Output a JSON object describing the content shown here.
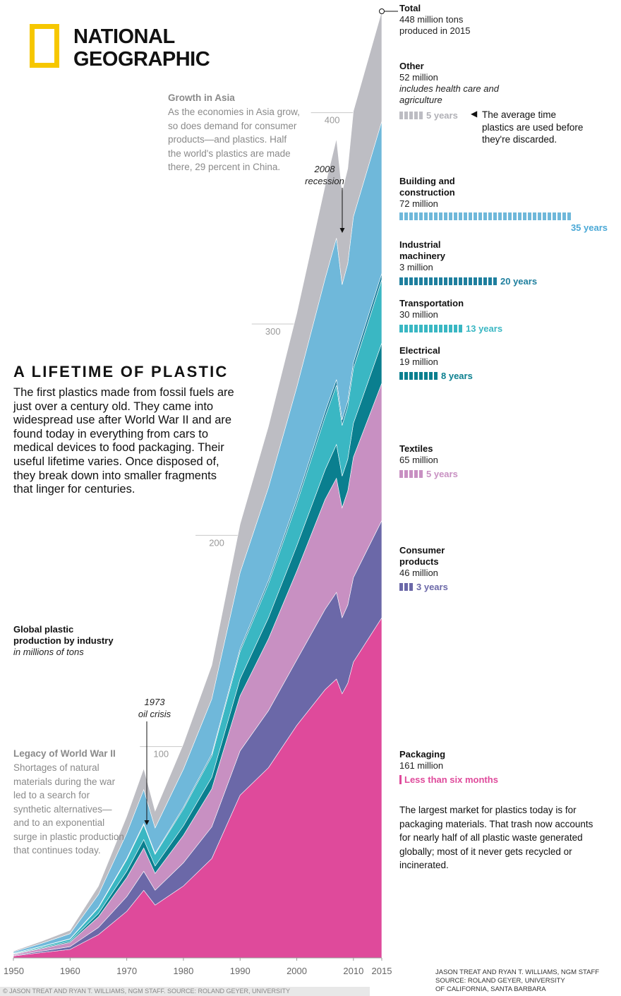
{
  "brand": {
    "line1": "NATIONAL",
    "line2": "GEOGRAPHIC"
  },
  "title": "A LIFETIME OF PLASTIC",
  "intro": "The first plastics made from fossil fuels are just over a century old. They came into widespread use after World War II and are found today in everything from cars to medical devices to food packaging. Their useful lifetime varies. Once disposed of, they break down into smaller fragments that linger for centuries.",
  "subtitle": {
    "line1": "Global plastic",
    "line2": "production by industry",
    "unit": "in millions of tons"
  },
  "asia_note": {
    "head": "Growth in Asia",
    "body": "As the economies in Asia grow, so does demand for consumer products—and plastics. Half the world's plastics are made there, 29 percent in China."
  },
  "ww2_note": {
    "head": "Legacy of World War II",
    "body": "Shortages of natural materials during the war led to a search for synthetic alternatives—and to an exponential surge in plastic production that continues today."
  },
  "annotations": {
    "oil_crisis": {
      "line1": "1973",
      "line2": "oil crisis"
    },
    "recession": {
      "line1": "2008",
      "line2": "recession"
    }
  },
  "total": {
    "label": "Total",
    "line1": "448 million tons",
    "line2": "produced in 2015"
  },
  "lifetime_note": "The average time plastics are used before they're discarded.",
  "sectors": [
    {
      "id": "other",
      "name": "Other",
      "amount": "52 million",
      "note": "includes health care and agriculture",
      "lifetime": "5 years",
      "lifetime_value": 5,
      "color": "#bdbdc3"
    },
    {
      "id": "building",
      "name": "Building and construction",
      "amount": "72 million",
      "lifetime": "35 years",
      "lifetime_value": 35,
      "color": "#6fb8da"
    },
    {
      "id": "industrial",
      "name": "Industrial machinery",
      "amount": "3 million",
      "lifetime": "20 years",
      "lifetime_value": 20,
      "color": "#1e7f9e"
    },
    {
      "id": "transportation",
      "name": "Transportation",
      "amount": "30 million",
      "lifetime": "13 years",
      "lifetime_value": 13,
      "color": "#3ab7c3"
    },
    {
      "id": "electrical",
      "name": "Electrical",
      "amount": "19 million",
      "lifetime": "8 years",
      "lifetime_value": 8,
      "color": "#0a7f8f"
    },
    {
      "id": "textiles",
      "name": "Textiles",
      "amount": "65 million",
      "lifetime": "5 years",
      "lifetime_value": 5,
      "color": "#c890c2"
    },
    {
      "id": "consumer",
      "name": "Consumer products",
      "amount": "46 million",
      "lifetime": "3 years",
      "lifetime_value": 3,
      "color": "#6b68a8"
    },
    {
      "id": "packaging",
      "name": "Packaging",
      "amount": "161 million",
      "lifetime": "Less than six months",
      "lifetime_value": 0.5,
      "color": "#df4a9b"
    }
  ],
  "packaging_note": "The largest market for plastics today is for packaging materials. That trash now accounts for nearly half of all plastic waste generated globally; most of it never gets recycled or incinerated.",
  "credits": {
    "line1": "JASON TREAT AND RYAN T. WILLIAMS, NGM STAFF",
    "line2": "SOURCE: ROLAND GEYER, UNIVERSITY",
    "line3": "OF CALIFORNIA, SANTA BARBARA"
  },
  "footer": "© JASON TREAT AND RYAN T. WILLIAMS, NGM STAFF. SOURCE: ROLAND GEYER, UNIVERSITY",
  "chart_data": {
    "type": "area",
    "stacked": true,
    "title": "A LIFETIME OF PLASTIC",
    "ylabel": "in millions of tons",
    "x": [
      1950,
      1955,
      1960,
      1965,
      1970,
      1973,
      1975,
      1980,
      1985,
      1990,
      1995,
      2000,
      2005,
      2007,
      2008,
      2009,
      2010,
      2015
    ],
    "x_ticks": [
      1950,
      1960,
      1970,
      1980,
      1990,
      2000,
      2010,
      2015
    ],
    "y_ticks": [
      100,
      200,
      300,
      400
    ],
    "ylim": [
      0,
      448
    ],
    "series": [
      {
        "name": "Packaging",
        "color": "#df4a9b",
        "values": [
          0.9,
          2.5,
          4,
          11,
          22,
          32,
          25,
          34,
          47,
          77,
          90,
          110,
          127,
          132,
          125,
          130,
          140,
          161
        ]
      },
      {
        "name": "Consumer products",
        "color": "#6b68a8",
        "values": [
          0.3,
          0.7,
          1.3,
          3.4,
          7,
          9,
          7,
          11,
          15,
          21,
          27,
          31,
          38,
          41,
          36,
          37,
          40,
          46
        ]
      },
      {
        "name": "Textiles",
        "color": "#c890c2",
        "values": [
          0.5,
          1.2,
          2,
          5,
          9,
          11,
          8,
          13,
          18,
          26,
          34,
          42,
          52,
          54,
          52,
          54,
          57,
          65
        ]
      },
      {
        "name": "Electrical",
        "color": "#0a7f8f",
        "values": [
          0.2,
          0.4,
          0.6,
          1.6,
          3,
          4,
          3.5,
          4.5,
          5.5,
          8,
          10,
          12,
          14,
          16,
          15,
          15,
          16,
          19
        ]
      },
      {
        "name": "Transportation",
        "color": "#3ab7c3",
        "values": [
          0.3,
          0.6,
          1,
          2.7,
          5.5,
          7,
          5.5,
          8,
          10,
          13,
          16,
          20,
          25,
          28,
          24,
          25,
          26,
          30
        ]
      },
      {
        "name": "Industrial machinery",
        "color": "#1e7f9e",
        "values": [
          0.05,
          0.1,
          0.15,
          0.3,
          0.5,
          0.6,
          0.5,
          0.8,
          1,
          1.3,
          1.6,
          2,
          2.5,
          2.7,
          2.6,
          2.6,
          2.8,
          3
        ]
      },
      {
        "name": "Building and construction",
        "color": "#6fb8da",
        "values": [
          0.6,
          1.4,
          2.4,
          6,
          12,
          16,
          12,
          18,
          26,
          36,
          44,
          53,
          63,
          67,
          64,
          65,
          69,
          72
        ]
      },
      {
        "name": "Other",
        "color": "#bdbdc3",
        "values": [
          0.4,
          1,
          1.6,
          4,
          8,
          10,
          8,
          12,
          16,
          23,
          29,
          35,
          44,
          47,
          44,
          45,
          50,
          52
        ]
      }
    ]
  }
}
